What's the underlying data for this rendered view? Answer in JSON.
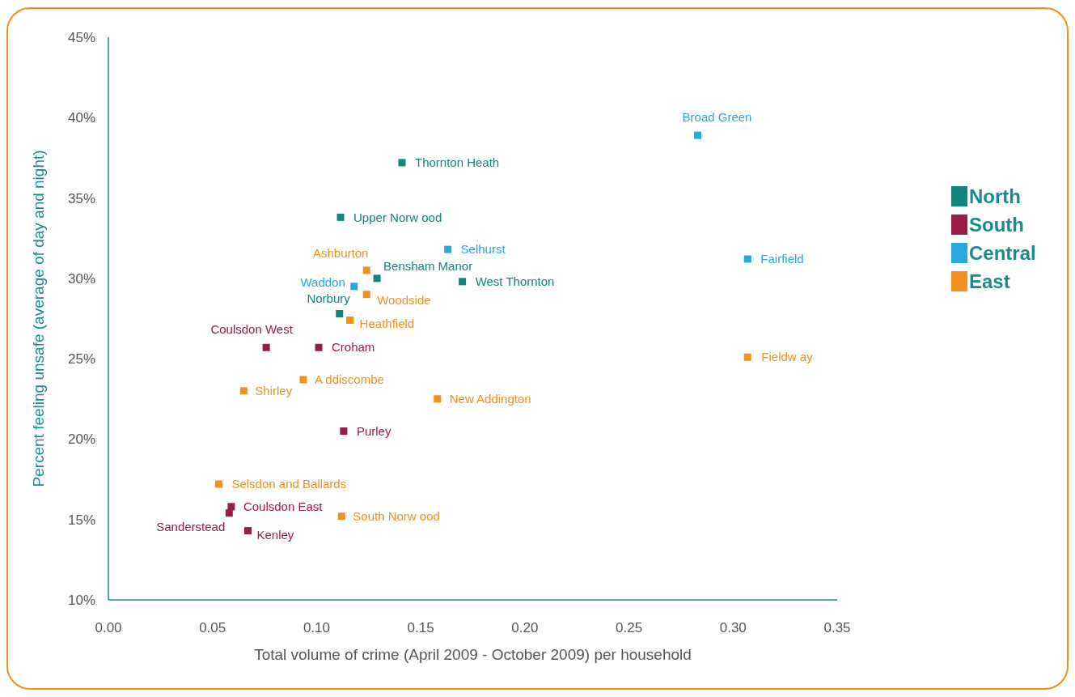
{
  "chart_data": {
    "type": "scatter",
    "xlabel": "Total volume of crime (April 2009 - October 2009) per household",
    "ylabel": "Percent feeling unsafe (average of day and night)",
    "xlim": [
      0,
      0.35
    ],
    "xticks": [
      {
        "value": 0,
        "label": "0.00"
      },
      {
        "value": 0.05,
        "label": "0.05"
      },
      {
        "value": 0.1,
        "label": "0.10"
      },
      {
        "value": 0.15,
        "label": "0.15"
      },
      {
        "value": 0.2,
        "label": "0.20"
      },
      {
        "value": 0.25,
        "label": "0.25"
      },
      {
        "value": 0.3,
        "label": "0.30"
      },
      {
        "value": 0.35,
        "label": "0.35"
      }
    ],
    "ylim": [
      10,
      45
    ],
    "yticks": [
      {
        "value": 10,
        "label": "10%"
      },
      {
        "value": 15,
        "label": "15%"
      },
      {
        "value": 20,
        "label": "20%"
      },
      {
        "value": 25,
        "label": "25%"
      },
      {
        "value": 30,
        "label": "30%"
      },
      {
        "value": 35,
        "label": "35%"
      },
      {
        "value": 40,
        "label": "40%"
      },
      {
        "value": 45,
        "label": "45%"
      }
    ],
    "grid": false,
    "legend": "right",
    "marker": "square",
    "series": [
      {
        "name": "North",
        "color": "#13857a",
        "x": [
          0.141,
          0.1115,
          0.129,
          0.17,
          0.111
        ],
        "values": [
          37.2,
          33.8,
          30.0,
          29.8,
          27.8
        ]
      },
      {
        "name": "South",
        "color": "#9b1b45",
        "x": [
          0.0758,
          0.101,
          0.113,
          0.059,
          0.058,
          0.067
        ],
        "values": [
          25.7,
          25.7,
          20.5,
          15.8,
          15.4,
          14.3
        ]
      },
      {
        "name": "Central",
        "color": "#29a8e0",
        "x": [
          0.283,
          0.163,
          0.307,
          0.118
        ],
        "values": [
          38.9,
          31.8,
          31.2,
          29.5
        ]
      },
      {
        "name": "East",
        "color": "#f0901e",
        "x": [
          0.124,
          0.124,
          0.116,
          0.0936,
          0.065,
          0.158,
          0.307,
          0.053,
          0.112
        ],
        "values": [
          30.5,
          29.0,
          27.4,
          23.7,
          23.0,
          22.5,
          25.1,
          17.2,
          15.2
        ]
      }
    ],
    "annotations": [
      {
        "text": "Thornton Heath",
        "x": 0.141,
        "y": 37.2
      },
      {
        "text": "Upper Norw ood",
        "x": 0.1115,
        "y": 33.8
      },
      {
        "text": "Bensham Manor",
        "x": 0.129,
        "y": 30.0
      },
      {
        "text": "West Thornton",
        "x": 0.17,
        "y": 29.8
      },
      {
        "text": "Norbury",
        "x": 0.111,
        "y": 27.8
      },
      {
        "text": "Coulsdon West",
        "x": 0.0758,
        "y": 25.7
      },
      {
        "text": "Croham",
        "x": 0.101,
        "y": 25.7
      },
      {
        "text": "Purley",
        "x": 0.113,
        "y": 20.5
      },
      {
        "text": "Coulsdon East",
        "x": 0.059,
        "y": 15.8
      },
      {
        "text": "Sanderstead",
        "x": 0.058,
        "y": 15.4
      },
      {
        "text": "Kenley",
        "x": 0.067,
        "y": 14.3
      },
      {
        "text": "Broad Green",
        "x": 0.283,
        "y": 38.9
      },
      {
        "text": "Selhurst",
        "x": 0.163,
        "y": 31.8
      },
      {
        "text": "Fairfield",
        "x": 0.307,
        "y": 31.2
      },
      {
        "text": "Waddon",
        "x": 0.118,
        "y": 29.5
      },
      {
        "text": "Ashburton",
        "x": 0.124,
        "y": 30.5
      },
      {
        "text": "Woodside",
        "x": 0.124,
        "y": 29.0
      },
      {
        "text": "Heathfield",
        "x": 0.116,
        "y": 27.4
      },
      {
        "text": "A ddiscombe",
        "x": 0.0936,
        "y": 23.7
      },
      {
        "text": "Shirley",
        "x": 0.065,
        "y": 23.0
      },
      {
        "text": "New  Addington",
        "x": 0.158,
        "y": 22.5
      },
      {
        "text": "Fieldw ay",
        "x": 0.307,
        "y": 25.1
      },
      {
        "text": "Selsdon and Ballards",
        "x": 0.053,
        "y": 17.2
      },
      {
        "text": "South Norw ood",
        "x": 0.112,
        "y": 15.2
      }
    ]
  }
}
